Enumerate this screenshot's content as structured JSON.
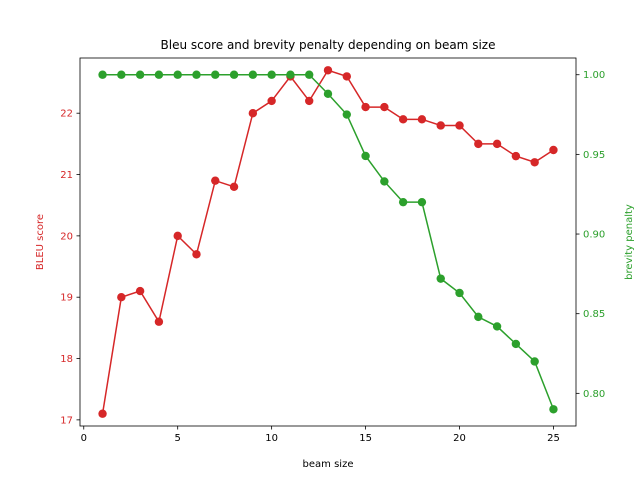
{
  "chart_data": {
    "type": "line",
    "title": "Bleu score and brevity penalty depending on beam size",
    "xlabel": "beam size",
    "ylabel_left": "BLEU score",
    "ylabel_right": "brevity penalty",
    "xlim": [
      -0.2,
      26.2
    ],
    "ylim_left": [
      16.9,
      22.9
    ],
    "ylim_right": [
      0.7795,
      1.0105
    ],
    "x_ticks": [
      0,
      5,
      10,
      15,
      20,
      25
    ],
    "y_ticks_left": [
      17,
      18,
      19,
      20,
      21,
      22
    ],
    "y_ticks_right": [
      0.8,
      0.85,
      0.9,
      0.95,
      1.0
    ],
    "y_tick_labels_right": [
      "0.80",
      "0.85",
      "0.90",
      "0.95",
      "1.00"
    ],
    "grid": false,
    "x": [
      1,
      2,
      3,
      4,
      5,
      6,
      7,
      8,
      9,
      10,
      11,
      12,
      13,
      14,
      15,
      16,
      17,
      18,
      19,
      20,
      21,
      22,
      23,
      24,
      25
    ],
    "series": [
      {
        "name": "BLEU score",
        "axis": "left",
        "color": "#d62728",
        "values": [
          17.1,
          19.0,
          19.1,
          18.6,
          20.0,
          19.7,
          20.9,
          20.8,
          22.0,
          22.2,
          22.6,
          22.2,
          22.7,
          22.6,
          22.1,
          22.1,
          21.9,
          21.9,
          21.8,
          21.8,
          21.5,
          21.5,
          21.3,
          21.2,
          21.4
        ]
      },
      {
        "name": "brevity penalty",
        "axis": "right",
        "color": "#2ca02c",
        "values": [
          1.0,
          1.0,
          1.0,
          1.0,
          1.0,
          1.0,
          1.0,
          1.0,
          1.0,
          1.0,
          1.0,
          1.0,
          0.988,
          0.975,
          0.949,
          0.933,
          0.92,
          0.92,
          0.872,
          0.863,
          0.848,
          0.842,
          0.831,
          0.82,
          0.79
        ]
      }
    ]
  }
}
